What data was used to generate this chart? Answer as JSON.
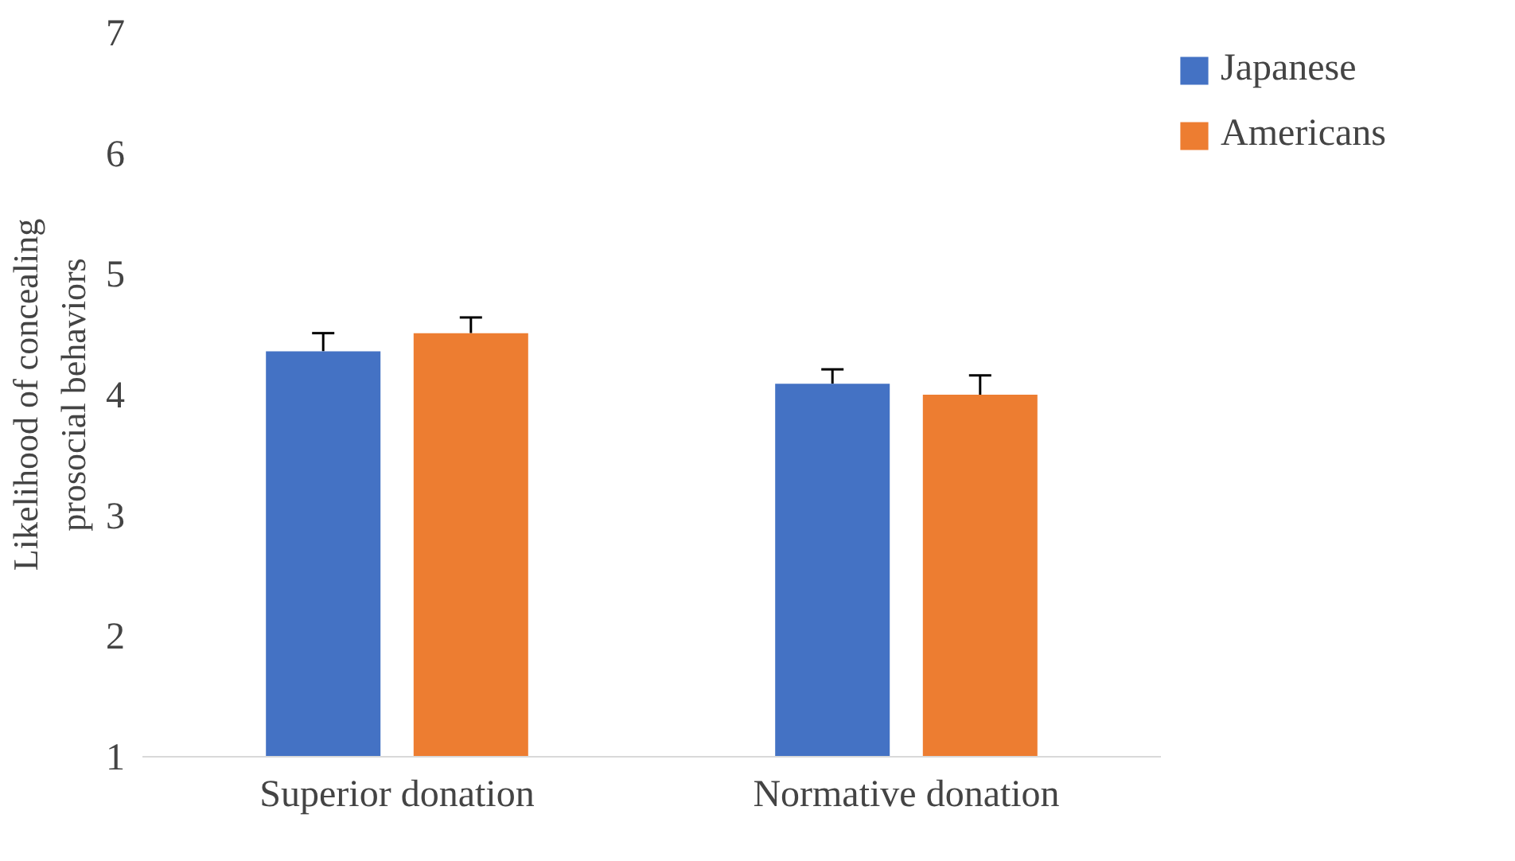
{
  "chart_data": {
    "type": "bar",
    "ylabel": "Likelihood of concealing\nprosocial behaviors",
    "categories": [
      "Superior donation",
      "Normative donation"
    ],
    "series": [
      {
        "name": "Japanese",
        "color": "#4472c4",
        "values": [
          4.36,
          4.09
        ],
        "errors": [
          [
            4.36,
            4.51
          ],
          [
            4.09,
            4.21
          ]
        ]
      },
      {
        "name": "Americans",
        "color": "#ed7d31",
        "values": [
          4.51,
          4.0
        ],
        "errors": [
          [
            4.51,
            4.64
          ],
          [
            4.0,
            4.16
          ]
        ]
      }
    ],
    "ylim": [
      1,
      7
    ],
    "yticks": [
      1,
      2,
      3,
      4,
      5,
      6,
      7
    ],
    "grid": false,
    "legend": "top right"
  }
}
